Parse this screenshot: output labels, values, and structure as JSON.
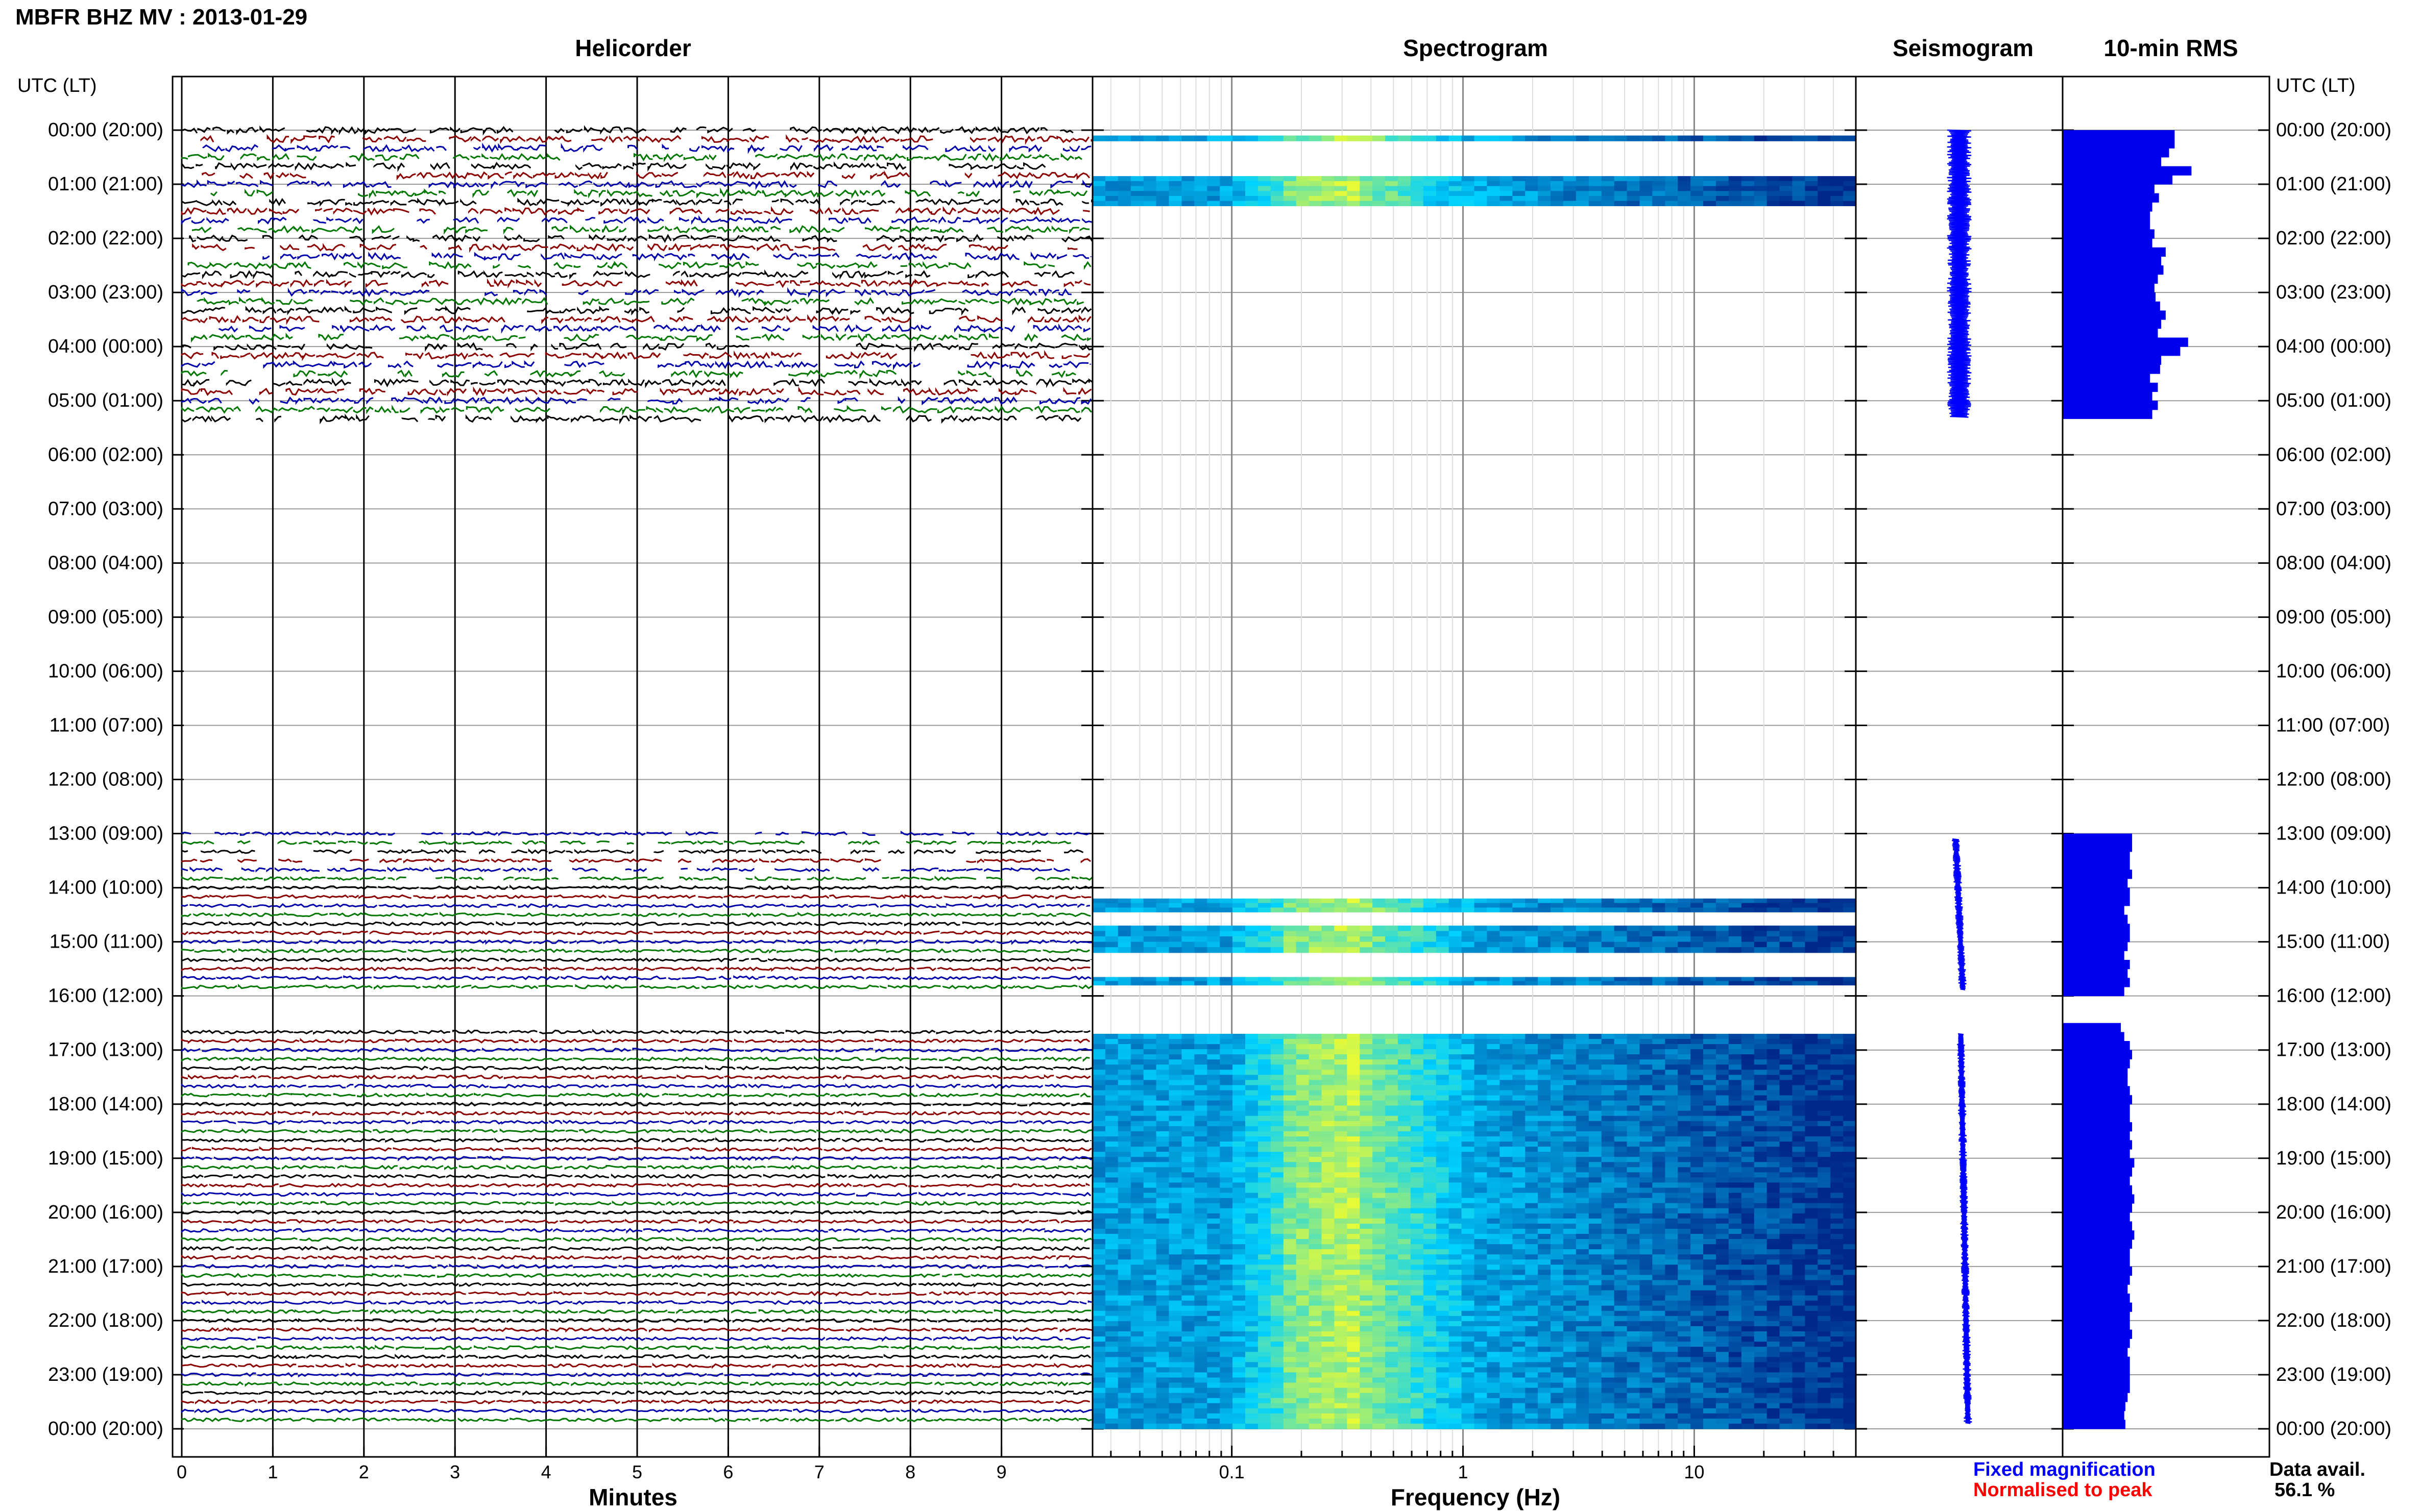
{
  "header": {
    "title": "MBFR BHZ MV : 2013-01-29",
    "utc_label": "UTC (LT)"
  },
  "panels": {
    "helicorder": "Helicorder",
    "spectrogram": "Spectrogram",
    "seismogram": "Seismogram",
    "rms": "10-min RMS"
  },
  "time_labels": [
    "00:00 (20:00)",
    "01:00 (21:00)",
    "02:00 (22:00)",
    "03:00 (23:00)",
    "04:00 (00:00)",
    "05:00 (01:00)",
    "06:00 (02:00)",
    "07:00 (03:00)",
    "08:00 (04:00)",
    "09:00 (05:00)",
    "10:00 (06:00)",
    "11:00 (07:00)",
    "12:00 (08:00)",
    "13:00 (09:00)",
    "14:00 (10:00)",
    "15:00 (11:00)",
    "16:00 (12:00)",
    "17:00 (13:00)",
    "18:00 (14:00)",
    "19:00 (15:00)",
    "20:00 (16:00)",
    "21:00 (17:00)",
    "22:00 (18:00)",
    "23:00 (19:00)",
    "00:00 (20:00)"
  ],
  "legend": {
    "fixed": "Fixed magnification",
    "normalised": "Normalised to peak"
  },
  "data_avail": {
    "label": "Data avail.",
    "value": "56.1 %"
  },
  "colors": {
    "trace_cycle": [
      "#000000",
      "#8b0000",
      "#0000aa",
      "#007700"
    ],
    "fixed": "#0000ff",
    "normalised": "#ff0000",
    "rms": "#0000ee"
  },
  "chart_data": [
    {
      "type": "line",
      "panel": "helicorder",
      "xlabel": "Minutes",
      "x_ticks": [
        "0",
        "1",
        "2",
        "3",
        "4",
        "5",
        "6",
        "7",
        "8",
        "9"
      ],
      "xlim": [
        0,
        10
      ],
      "row_minutes": 10,
      "data_intervals_utc_hours": [
        [
          0,
          5.4
        ],
        [
          13.0,
          16.0
        ],
        [
          16.6,
          24.0
        ]
      ]
    },
    {
      "type": "heatmap",
      "panel": "spectrogram",
      "xlabel": "Frequency (Hz)",
      "x_ticks": [
        "0.1",
        "1",
        "10"
      ],
      "xscale": "log",
      "xlim": [
        0.025,
        50
      ],
      "active_bands_utc_hours": [
        [
          0.1,
          0.2
        ],
        [
          0.85,
          1.4
        ],
        [
          14.2,
          14.45
        ],
        [
          14.7,
          15.2
        ],
        [
          15.65,
          15.8
        ],
        [
          16.7,
          24.0
        ]
      ]
    },
    {
      "type": "line",
      "panel": "seismogram",
      "segments_utc_hours": [
        [
          0.0,
          5.3
        ],
        [
          13.1,
          15.9
        ],
        [
          16.7,
          23.9
        ]
      ]
    },
    {
      "type": "bar",
      "panel": "rms",
      "orientation": "horizontal",
      "bin_minutes": 10,
      "segments": [
        {
          "start_hour": 0.0,
          "values": [
            1.0,
            1.0,
            0.95,
            0.88,
            1.15,
            0.98,
            0.82,
            0.86,
            0.8,
            0.78,
            0.78,
            0.82,
            0.8,
            0.92,
            0.88,
            0.9,
            0.85,
            0.82,
            0.83,
            0.87,
            0.92,
            0.88,
            0.85,
            1.12,
            1.05,
            0.88,
            0.87,
            0.78,
            0.85,
            0.8,
            0.85,
            0.8
          ]
        },
        {
          "start_hour": 13.0,
          "values": [
            0.62,
            0.62,
            0.6,
            0.6,
            0.62,
            0.58,
            0.6,
            0.6,
            0.55,
            0.58,
            0.6,
            0.6,
            0.58,
            0.55,
            0.6,
            0.58,
            0.6,
            0.55
          ]
        },
        {
          "start_hour": 16.5,
          "values": [
            0.52,
            0.55,
            0.6,
            0.62,
            0.6,
            0.58,
            0.58,
            0.6,
            0.62,
            0.6,
            0.6,
            0.62,
            0.6,
            0.62,
            0.6,
            0.64,
            0.62,
            0.6,
            0.62,
            0.64,
            0.62,
            0.6,
            0.62,
            0.64,
            0.62,
            0.6,
            0.6,
            0.62,
            0.6,
            0.58,
            0.6,
            0.62,
            0.6,
            0.6,
            0.62,
            0.6,
            0.58,
            0.6,
            0.6,
            0.6,
            0.6,
            0.58,
            0.56,
            0.55,
            0.56
          ]
        }
      ]
    }
  ]
}
